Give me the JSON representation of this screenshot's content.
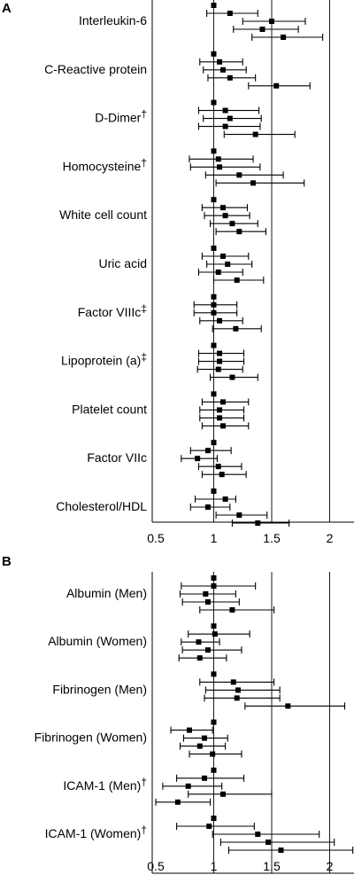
{
  "chart_data": [
    {
      "type": "forest",
      "panel_label": "A",
      "xlim": [
        0.5,
        2.25
      ],
      "xticks": [
        "0.5",
        "1",
        "1.5",
        "2"
      ],
      "reference_lines": [
        1,
        1.5,
        2
      ],
      "groups": [
        {
          "label": "Interleukin-6",
          "rows": [
            {
              "est": 1.0,
              "lo": 1.0,
              "hi": 1.0
            },
            {
              "est": 1.14,
              "lo": 0.94,
              "hi": 1.38
            },
            {
              "est": 1.5,
              "lo": 1.25,
              "hi": 1.79
            },
            {
              "est": 1.42,
              "lo": 1.17,
              "hi": 1.73
            },
            {
              "est": 1.6,
              "lo": 1.33,
              "hi": 1.94
            }
          ]
        },
        {
          "label": "C-Reactive protein",
          "rows": [
            {
              "est": 1.0,
              "lo": 1.0,
              "hi": 1.0
            },
            {
              "est": 1.05,
              "lo": 0.88,
              "hi": 1.25
            },
            {
              "est": 1.08,
              "lo": 0.91,
              "hi": 1.28
            },
            {
              "est": 1.14,
              "lo": 0.95,
              "hi": 1.36
            },
            {
              "est": 1.54,
              "lo": 1.3,
              "hi": 1.83
            }
          ]
        },
        {
          "label": "D-Dimer",
          "note": "†",
          "rows": [
            {
              "est": 1.0,
              "lo": 1.0,
              "hi": 1.0
            },
            {
              "est": 1.1,
              "lo": 0.87,
              "hi": 1.39
            },
            {
              "est": 1.14,
              "lo": 0.91,
              "hi": 1.41
            },
            {
              "est": 1.1,
              "lo": 0.87,
              "hi": 1.4
            },
            {
              "est": 1.36,
              "lo": 1.09,
              "hi": 1.7
            }
          ]
        },
        {
          "label": "Homocysteine",
          "note": "†",
          "rows": [
            {
              "est": 1.0,
              "lo": 1.0,
              "hi": 1.0
            },
            {
              "est": 1.04,
              "lo": 0.79,
              "hi": 1.34
            },
            {
              "est": 1.05,
              "lo": 0.8,
              "hi": 1.4
            },
            {
              "est": 1.22,
              "lo": 0.93,
              "hi": 1.6
            },
            {
              "est": 1.34,
              "lo": 1.02,
              "hi": 1.78
            }
          ]
        },
        {
          "label": "White cell count",
          "rows": [
            {
              "est": 1.0,
              "lo": 1.0,
              "hi": 1.0
            },
            {
              "est": 1.08,
              "lo": 0.9,
              "hi": 1.29
            },
            {
              "est": 1.1,
              "lo": 0.92,
              "hi": 1.31
            },
            {
              "est": 1.16,
              "lo": 0.97,
              "hi": 1.38
            },
            {
              "est": 1.22,
              "lo": 1.02,
              "hi": 1.45
            }
          ]
        },
        {
          "label": "Uric acid",
          "rows": [
            {
              "est": 1.0,
              "lo": 1.0,
              "hi": 1.0
            },
            {
              "est": 1.08,
              "lo": 0.9,
              "hi": 1.3
            },
            {
              "est": 1.12,
              "lo": 0.94,
              "hi": 1.33
            },
            {
              "est": 1.04,
              "lo": 0.87,
              "hi": 1.25
            },
            {
              "est": 1.2,
              "lo": 1.0,
              "hi": 1.43
            }
          ]
        },
        {
          "label": "Factor VIIIc",
          "note": "‡",
          "rows": [
            {
              "est": 1.0,
              "lo": 1.0,
              "hi": 1.0
            },
            {
              "est": 1.0,
              "lo": 0.83,
              "hi": 1.2
            },
            {
              "est": 1.0,
              "lo": 0.83,
              "hi": 1.2
            },
            {
              "est": 1.05,
              "lo": 0.88,
              "hi": 1.25
            },
            {
              "est": 1.19,
              "lo": 0.99,
              "hi": 1.41
            }
          ]
        },
        {
          "label": "Lipoprotein (a)",
          "note": "‡",
          "rows": [
            {
              "est": 1.0,
              "lo": 1.0,
              "hi": 1.0
            },
            {
              "est": 1.05,
              "lo": 0.87,
              "hi": 1.26
            },
            {
              "est": 1.05,
              "lo": 0.87,
              "hi": 1.26
            },
            {
              "est": 1.04,
              "lo": 0.86,
              "hi": 1.25
            },
            {
              "est": 1.16,
              "lo": 0.97,
              "hi": 1.38
            }
          ]
        },
        {
          "label": "Platelet count",
          "rows": [
            {
              "est": 1.0,
              "lo": 1.0,
              "hi": 1.0
            },
            {
              "est": 1.08,
              "lo": 0.9,
              "hi": 1.3
            },
            {
              "est": 1.05,
              "lo": 0.88,
              "hi": 1.26
            },
            {
              "est": 1.05,
              "lo": 0.88,
              "hi": 1.26
            },
            {
              "est": 1.08,
              "lo": 0.9,
              "hi": 1.3
            }
          ]
        },
        {
          "label": "Factor VIIc",
          "rows": [
            {
              "est": 1.0,
              "lo": 1.0,
              "hi": 1.0
            },
            {
              "est": 0.95,
              "lo": 0.8,
              "hi": 1.15
            },
            {
              "est": 0.86,
              "lo": 0.72,
              "hi": 1.03
            },
            {
              "est": 1.04,
              "lo": 0.87,
              "hi": 1.24
            },
            {
              "est": 1.07,
              "lo": 0.9,
              "hi": 1.28
            }
          ]
        },
        {
          "label": "Cholesterol/HDL",
          "rows": [
            {
              "est": 1.0,
              "lo": 1.0,
              "hi": 1.0
            },
            {
              "est": 1.1,
              "lo": 0.84,
              "hi": 1.19
            },
            {
              "est": 0.95,
              "lo": 0.8,
              "hi": 1.14
            },
            {
              "est": 1.22,
              "lo": 1.02,
              "hi": 1.46
            },
            {
              "est": 1.38,
              "lo": 1.16,
              "hi": 1.65
            }
          ]
        }
      ]
    },
    {
      "type": "forest",
      "panel_label": "B",
      "xlim": [
        0.5,
        2.25
      ],
      "xticks": [
        "0.5",
        "1",
        "1.5",
        "2"
      ],
      "reference_lines": [
        1,
        1.5,
        2
      ],
      "groups": [
        {
          "label": "Albumin (Men)",
          "rows": [
            {
              "est": 1.0,
              "lo": 1.0,
              "hi": 1.0
            },
            {
              "est": 1.0,
              "lo": 0.72,
              "hi": 1.36
            },
            {
              "est": 0.93,
              "lo": 0.71,
              "hi": 1.19
            },
            {
              "est": 0.95,
              "lo": 0.73,
              "hi": 1.22
            },
            {
              "est": 1.16,
              "lo": 0.88,
              "hi": 1.52
            }
          ]
        },
        {
          "label": "Albumin (Women)",
          "rows": [
            {
              "est": 1.0,
              "lo": 1.0,
              "hi": 1.0
            },
            {
              "est": 1.01,
              "lo": 0.78,
              "hi": 1.31
            },
            {
              "est": 0.87,
              "lo": 0.72,
              "hi": 1.05
            },
            {
              "est": 0.95,
              "lo": 0.73,
              "hi": 1.24
            },
            {
              "est": 0.88,
              "lo": 0.7,
              "hi": 1.11
            }
          ]
        },
        {
          "label": "Fibrinogen (Men)",
          "rows": [
            {
              "est": 1.0,
              "lo": 1.0,
              "hi": 1.0
            },
            {
              "est": 1.17,
              "lo": 0.88,
              "hi": 1.52
            },
            {
              "est": 1.21,
              "lo": 0.93,
              "hi": 1.57
            },
            {
              "est": 1.2,
              "lo": 0.92,
              "hi": 1.57
            },
            {
              "est": 1.64,
              "lo": 1.27,
              "hi": 2.13
            }
          ]
        },
        {
          "label": "Fibrinogen (Women)",
          "rows": [
            {
              "est": 1.0,
              "lo": 1.0,
              "hi": 1.0
            },
            {
              "est": 0.79,
              "lo": 0.63,
              "hi": 0.99
            },
            {
              "est": 0.92,
              "lo": 0.74,
              "hi": 1.12
            },
            {
              "est": 0.88,
              "lo": 0.71,
              "hi": 1.1
            },
            {
              "est": 0.99,
              "lo": 0.79,
              "hi": 1.24
            }
          ]
        },
        {
          "label": "ICAM-1 (Men)",
          "note": "†",
          "rows": [
            {
              "est": 1.0,
              "lo": 1.0,
              "hi": 1.0
            },
            {
              "est": 0.92,
              "lo": 0.68,
              "hi": 1.26
            },
            {
              "est": 0.78,
              "lo": 0.56,
              "hi": 1.07
            },
            {
              "est": 1.08,
              "lo": 0.78,
              "hi": 1.5
            },
            {
              "est": 0.69,
              "lo": 0.5,
              "hi": 0.97
            }
          ]
        },
        {
          "label": "ICAM-1 (Women)",
          "note": "†",
          "rows": [
            {
              "est": 1.0,
              "lo": 1.0,
              "hi": 1.0
            },
            {
              "est": 0.96,
              "lo": 0.68,
              "hi": 1.35
            },
            {
              "est": 1.38,
              "lo": 0.99,
              "hi": 1.91
            },
            {
              "est": 1.47,
              "lo": 1.06,
              "hi": 2.04
            },
            {
              "est": 1.58,
              "lo": 1.13,
              "hi": 2.2
            }
          ]
        }
      ]
    }
  ]
}
